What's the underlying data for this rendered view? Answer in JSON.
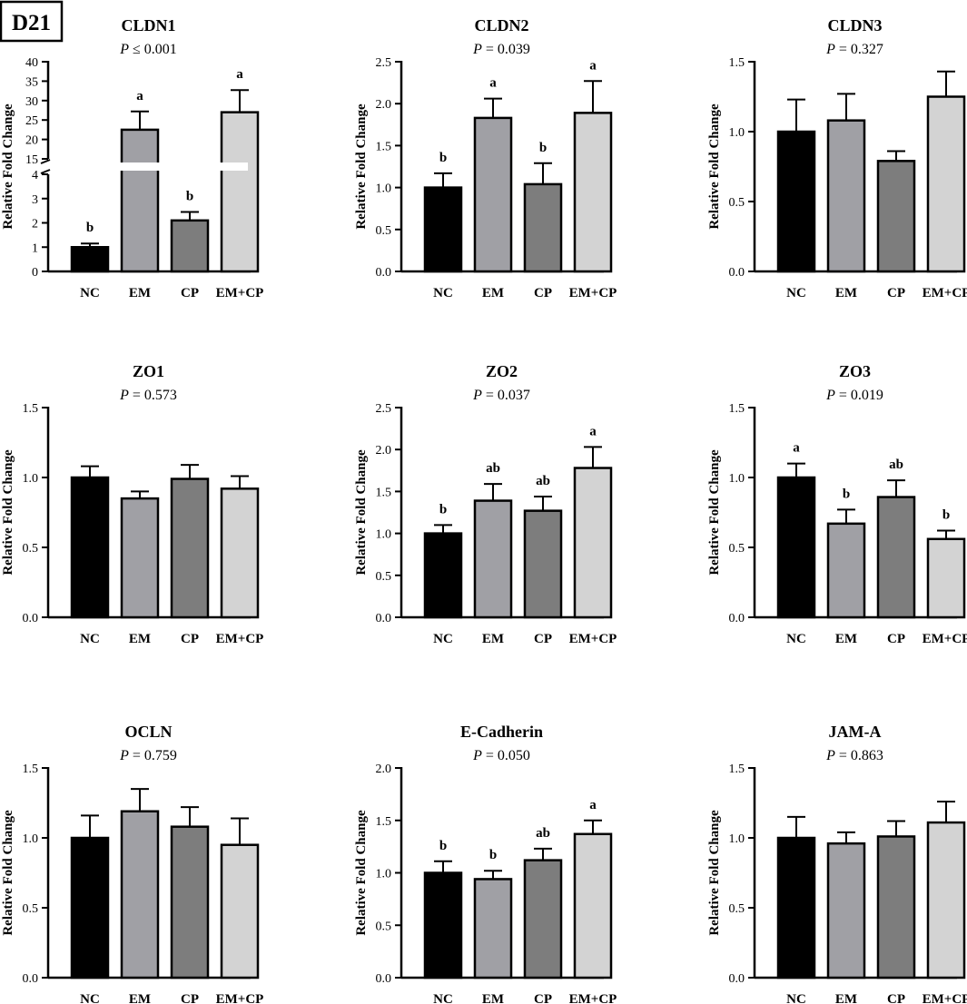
{
  "panel_label": "D21",
  "colors": [
    "#000000",
    "#a0a0a5",
    "#7d7d7d",
    "#d3d3d3"
  ],
  "chart_data": [
    {
      "type": "bar",
      "title": "CLDN1",
      "p_prefix": "P",
      "p_text": " ≤ 0.001",
      "ylabel": "Relative Fold Change",
      "categories": [
        "NC",
        "EM",
        "CP",
        "EM+CP"
      ],
      "values": [
        1.0,
        22.5,
        2.1,
        27.0
      ],
      "errors": [
        0.15,
        4.7,
        0.35,
        5.7
      ],
      "letters": [
        "b",
        "a",
        "b",
        "a"
      ],
      "broken_axis": {
        "lower": [
          0,
          4
        ],
        "upper": [
          15,
          40
        ]
      },
      "lower_ticks": [
        0,
        1,
        2,
        3,
        4
      ],
      "lower_tick_labels": [
        "0",
        "1",
        "2",
        "3",
        "4"
      ],
      "upper_ticks": [
        15,
        20,
        25,
        30,
        35,
        40
      ],
      "upper_tick_labels": [
        "15",
        "20",
        "25",
        "30",
        "35",
        "40"
      ]
    },
    {
      "type": "bar",
      "title": "CLDN2",
      "p_prefix": "P",
      "p_text": " = 0.039",
      "ylabel": "Relative Fold Change",
      "categories": [
        "NC",
        "EM",
        "CP",
        "EM+CP"
      ],
      "values": [
        1.0,
        1.83,
        1.04,
        1.89
      ],
      "errors": [
        0.17,
        0.23,
        0.25,
        0.38
      ],
      "letters": [
        "b",
        "a",
        "b",
        "a"
      ],
      "ylim": [
        0,
        2.5
      ],
      "ticks": [
        0,
        0.5,
        1.0,
        1.5,
        2.0,
        2.5
      ],
      "tick_labels": [
        "0.0",
        "0.5",
        "1.0",
        "1.5",
        "2.0",
        "2.5"
      ]
    },
    {
      "type": "bar",
      "title": "CLDN3",
      "p_prefix": "P",
      "p_text": " = 0.327",
      "ylabel": "Relative Fold Change",
      "categories": [
        "NC",
        "EM",
        "CP",
        "EM+CP"
      ],
      "values": [
        1.0,
        1.08,
        0.79,
        1.25
      ],
      "errors": [
        0.23,
        0.19,
        0.07,
        0.18
      ],
      "letters": [
        "",
        "",
        "",
        ""
      ],
      "ylim": [
        0,
        1.5
      ],
      "ticks": [
        0,
        0.5,
        1.0,
        1.5
      ],
      "tick_labels": [
        "0.0",
        "0.5",
        "1.0",
        "1.5"
      ]
    },
    {
      "type": "bar",
      "title": "ZO1",
      "p_prefix": "P",
      "p_text": " = 0.573",
      "ylabel": "Relative Fold Change",
      "categories": [
        "NC",
        "EM",
        "CP",
        "EM+CP"
      ],
      "values": [
        1.0,
        0.85,
        0.99,
        0.92
      ],
      "errors": [
        0.08,
        0.05,
        0.1,
        0.09
      ],
      "letters": [
        "",
        "",
        "",
        ""
      ],
      "ylim": [
        0,
        1.5
      ],
      "ticks": [
        0,
        0.5,
        1.0,
        1.5
      ],
      "tick_labels": [
        "0.0",
        "0.5",
        "1.0",
        "1.5"
      ]
    },
    {
      "type": "bar",
      "title": "ZO2",
      "p_prefix": "P",
      "p_text": " = 0.037",
      "ylabel": "Relative Fold Change",
      "categories": [
        "NC",
        "EM",
        "CP",
        "EM+CP"
      ],
      "values": [
        1.0,
        1.39,
        1.27,
        1.78
      ],
      "errors": [
        0.1,
        0.2,
        0.17,
        0.25
      ],
      "letters": [
        "b",
        "ab",
        "ab",
        "a"
      ],
      "ylim": [
        0,
        2.5
      ],
      "ticks": [
        0,
        0.5,
        1.0,
        1.5,
        2.0,
        2.5
      ],
      "tick_labels": [
        "0.0",
        "0.5",
        "1.0",
        "1.5",
        "2.0",
        "2.5"
      ]
    },
    {
      "type": "bar",
      "title": "ZO3",
      "p_prefix": "P",
      "p_text": " = 0.019",
      "ylabel": "Relative Fold Change",
      "categories": [
        "NC",
        "EM",
        "CP",
        "EM+CP"
      ],
      "values": [
        1.0,
        0.67,
        0.86,
        0.56
      ],
      "errors": [
        0.1,
        0.1,
        0.12,
        0.06
      ],
      "letters": [
        "a",
        "b",
        "ab",
        "b"
      ],
      "ylim": [
        0,
        1.5
      ],
      "ticks": [
        0,
        0.5,
        1.0,
        1.5
      ],
      "tick_labels": [
        "0.0",
        "0.5",
        "1.0",
        "1.5"
      ]
    },
    {
      "type": "bar",
      "title": "OCLN",
      "p_prefix": "P",
      "p_text": " = 0.759",
      "ylabel": "Relative Fold Change",
      "categories": [
        "NC",
        "EM",
        "CP",
        "EM+CP"
      ],
      "values": [
        1.0,
        1.19,
        1.08,
        0.95
      ],
      "errors": [
        0.16,
        0.16,
        0.14,
        0.19
      ],
      "letters": [
        "",
        "",
        "",
        ""
      ],
      "ylim": [
        0,
        1.5
      ],
      "ticks": [
        0,
        0.5,
        1.0,
        1.5
      ],
      "tick_labels": [
        "0.0",
        "0.5",
        "1.0",
        "1.5"
      ]
    },
    {
      "type": "bar",
      "title": "E-Cadherin",
      "p_prefix": "P",
      "p_text": " = 0.050",
      "ylabel": "Relative Fold Change",
      "categories": [
        "NC",
        "EM",
        "CP",
        "EM+CP"
      ],
      "values": [
        1.0,
        0.94,
        1.12,
        1.37
      ],
      "errors": [
        0.11,
        0.08,
        0.11,
        0.13
      ],
      "letters": [
        "b",
        "b",
        "ab",
        "a"
      ],
      "ylim": [
        0,
        2.0
      ],
      "ticks": [
        0,
        0.5,
        1.0,
        1.5,
        2.0
      ],
      "tick_labels": [
        "0.0",
        "0.5",
        "1.0",
        "1.5",
        "2.0"
      ]
    },
    {
      "type": "bar",
      "title": "JAM-A",
      "p_prefix": "P",
      "p_text": " = 0.863",
      "ylabel": "Relative Fold Change",
      "categories": [
        "NC",
        "EM",
        "CP",
        "EM+CP"
      ],
      "values": [
        1.0,
        0.96,
        1.01,
        1.11
      ],
      "errors": [
        0.15,
        0.08,
        0.11,
        0.15
      ],
      "letters": [
        "",
        "",
        "",
        ""
      ],
      "ylim": [
        0,
        1.5
      ],
      "ticks": [
        0,
        0.5,
        1.0,
        1.5
      ],
      "tick_labels": [
        "0.0",
        "0.5",
        "1.0",
        "1.5"
      ]
    }
  ]
}
